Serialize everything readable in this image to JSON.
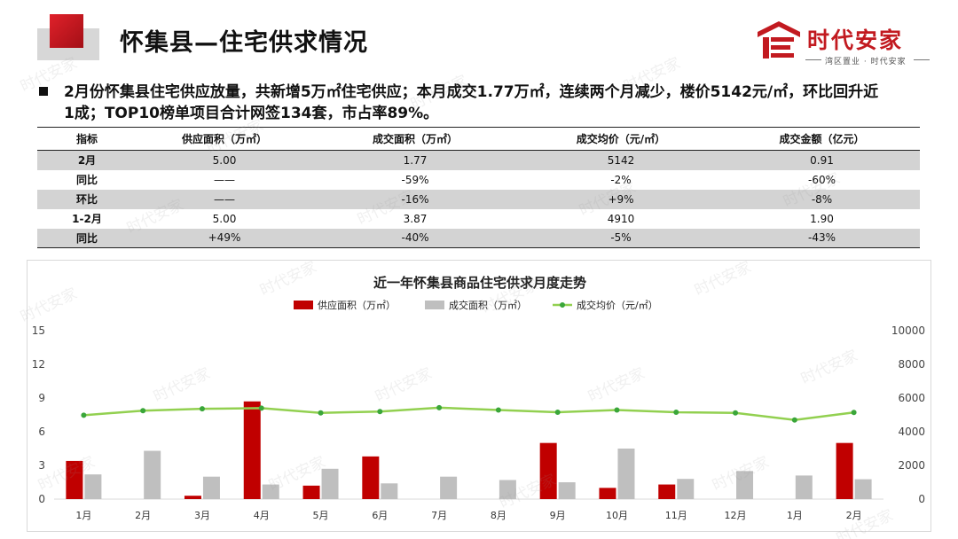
{
  "header": {
    "title": "怀集县—住宅供求情况",
    "logo_text": "时代安家",
    "logo_sub": "湾区置业 · 时代安家"
  },
  "summary": {
    "line1": "2月份怀集县住宅供应放量，共新增5万㎡住宅供应；本月成交1.77万㎡，连续两个月减少，楼价5142元/㎡，环比回升近",
    "line2": "1成；TOP10榜单项目合计网签134套，市占率89%。"
  },
  "table": {
    "headers": [
      "指标",
      "供应面积（万㎡）",
      "成交面积（万㎡）",
      "成交均价（元/㎡）",
      "成交金额（亿元）"
    ],
    "rows": [
      {
        "label": "2月",
        "cells": [
          "5.00",
          "1.77",
          "5142",
          "0.91"
        ],
        "shaded": true
      },
      {
        "label": "同比",
        "cells": [
          "——",
          "-59%",
          "-2%",
          "-60%"
        ],
        "shaded": false
      },
      {
        "label": "环比",
        "cells": [
          "——",
          "-16%",
          "+9%",
          "-8%"
        ],
        "shaded": true
      },
      {
        "label": "1-2月",
        "cells": [
          "5.00",
          "3.87",
          "4910",
          "1.90"
        ],
        "shaded": false
      },
      {
        "label": "同比",
        "cells": [
          "+49%",
          "-40%",
          "-5%",
          "-43%"
        ],
        "shaded": true
      }
    ]
  },
  "watermark": "时代安家",
  "colors": {
    "supply": "#c00000",
    "deal": "#bfbfbf",
    "price": "#92d050",
    "price_marker": "#3aa63a",
    "accent": "#c21a20"
  },
  "chart_data": {
    "type": "bar",
    "title": "近一年怀集县商品住宅供求月度走势",
    "categories": [
      "1月",
      "2月",
      "3月",
      "4月",
      "5月",
      "6月",
      "7月",
      "8月",
      "9月",
      "10月",
      "11月",
      "12月",
      "1月",
      "2月"
    ],
    "series": [
      {
        "name": "供应面积（万㎡）",
        "type": "bar",
        "axis": "left",
        "values": [
          3.4,
          0,
          0.3,
          8.7,
          1.2,
          3.8,
          0,
          0,
          5.0,
          1.0,
          1.3,
          0,
          0,
          5.0
        ]
      },
      {
        "name": "成交面积（万㎡）",
        "type": "bar",
        "axis": "left",
        "values": [
          2.2,
          4.3,
          2.0,
          1.3,
          2.7,
          1.4,
          2.0,
          1.7,
          1.5,
          4.5,
          1.8,
          2.5,
          2.1,
          1.77
        ]
      },
      {
        "name": "成交均价（元/㎡）",
        "type": "line",
        "axis": "right",
        "values": [
          4980,
          5250,
          5360,
          5400,
          5120,
          5200,
          5430,
          5290,
          5160,
          5290,
          5160,
          5120,
          4700,
          5142
        ]
      }
    ],
    "y_left": {
      "min": 0,
      "max": 15,
      "ticks": [
        0,
        3,
        6,
        9,
        12,
        15
      ]
    },
    "y_right": {
      "min": 0,
      "max": 10000,
      "ticks": [
        0,
        2000,
        4000,
        6000,
        8000,
        10000
      ]
    },
    "legend_position": "top-center",
    "grid": false
  }
}
